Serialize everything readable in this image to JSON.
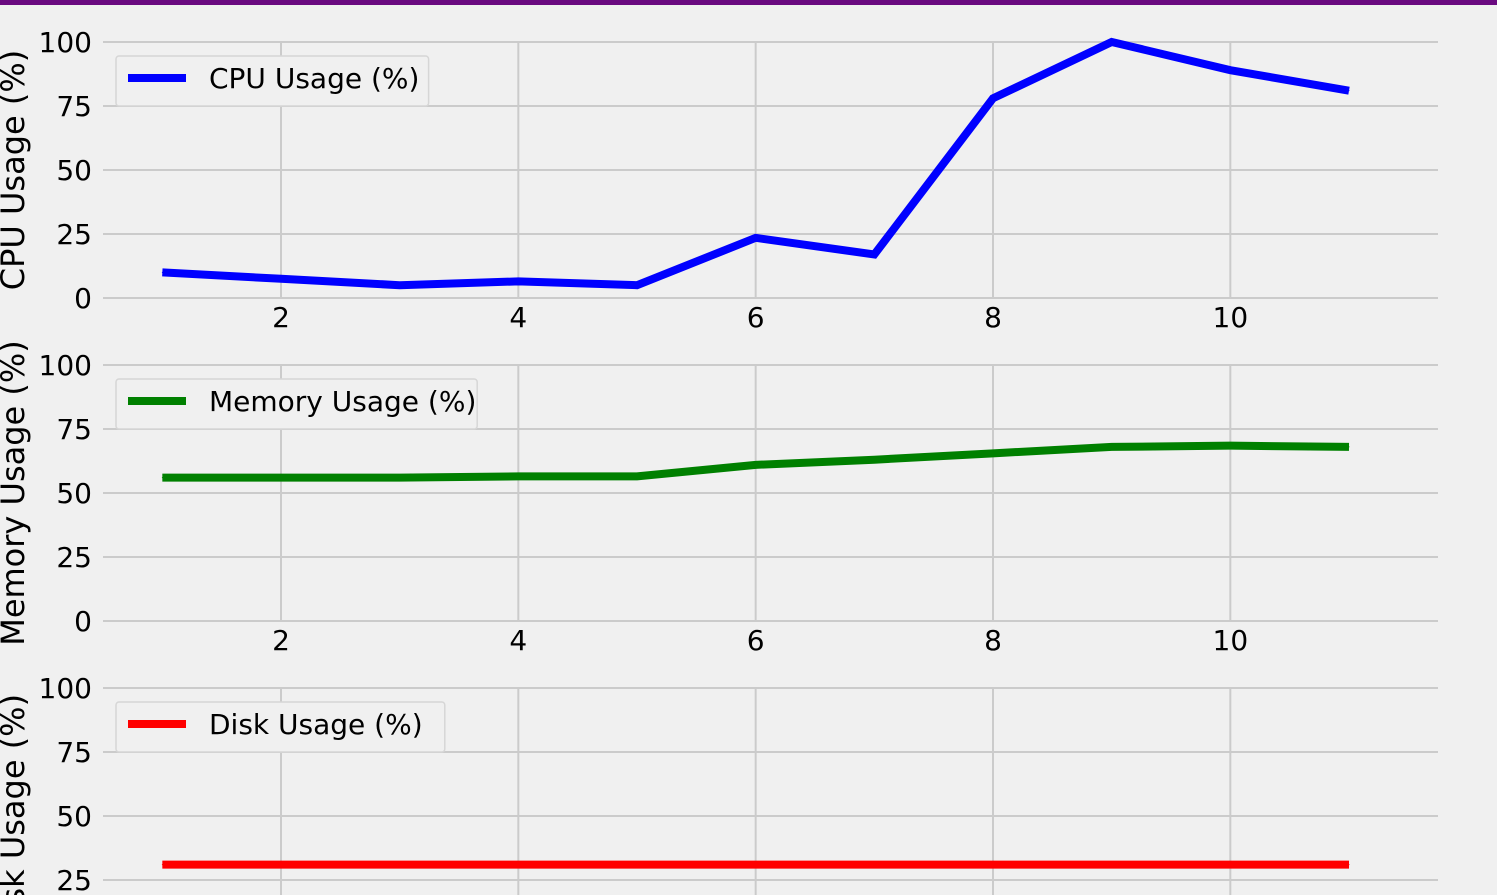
{
  "colors": {
    "top_bar": "#6a0a80",
    "background": "#f0f0f0",
    "grid": "#cbcbcb"
  },
  "chart_data": [
    {
      "type": "line",
      "ylabel": "CPU Usage (%)",
      "legend": "top-left",
      "grid": true,
      "xlim": [
        0.5,
        11.75
      ],
      "ylim": [
        0,
        100
      ],
      "xticks": [
        "2",
        "4",
        "6",
        "8",
        "10"
      ],
      "yticks": [
        "0",
        "25",
        "50",
        "75",
        "100"
      ],
      "series": [
        {
          "name": "CPU Usage (%)",
          "color": "#0000ff",
          "x": [
            1,
            2,
            3,
            4,
            5,
            6,
            7,
            8,
            9,
            10,
            11
          ],
          "y": [
            10,
            7.5,
            5,
            6.5,
            5,
            23.5,
            17,
            78,
            100,
            89,
            81
          ]
        }
      ]
    },
    {
      "type": "line",
      "ylabel": "Memory Usage (%)",
      "legend": "top-left",
      "grid": true,
      "xlim": [
        0.5,
        11.75
      ],
      "ylim": [
        0,
        100
      ],
      "xticks": [
        "2",
        "4",
        "6",
        "8",
        "10"
      ],
      "yticks": [
        "0",
        "25",
        "50",
        "75",
        "100"
      ],
      "series": [
        {
          "name": "Memory Usage (%)",
          "color": "#008000",
          "x": [
            1,
            2,
            3,
            4,
            5,
            6,
            7,
            8,
            9,
            10,
            11
          ],
          "y": [
            56,
            56,
            56,
            56.5,
            56.5,
            61,
            63,
            65.5,
            68,
            68.5,
            68
          ]
        }
      ]
    },
    {
      "type": "line",
      "ylabel": "Disk Usage (%)",
      "legend": "top-left",
      "grid": true,
      "xlim": [
        0.5,
        11.75
      ],
      "ylim": [
        0,
        100
      ],
      "xticks": [],
      "yticks": [
        "25",
        "50",
        "75",
        "100"
      ],
      "series": [
        {
          "name": "Disk Usage (%)",
          "color": "#ff0000",
          "x": [
            1,
            2,
            3,
            4,
            5,
            6,
            7,
            8,
            9,
            10,
            11
          ],
          "y": [
            31,
            31,
            31,
            31,
            31,
            31,
            31,
            31,
            31,
            31,
            31
          ]
        }
      ]
    }
  ]
}
